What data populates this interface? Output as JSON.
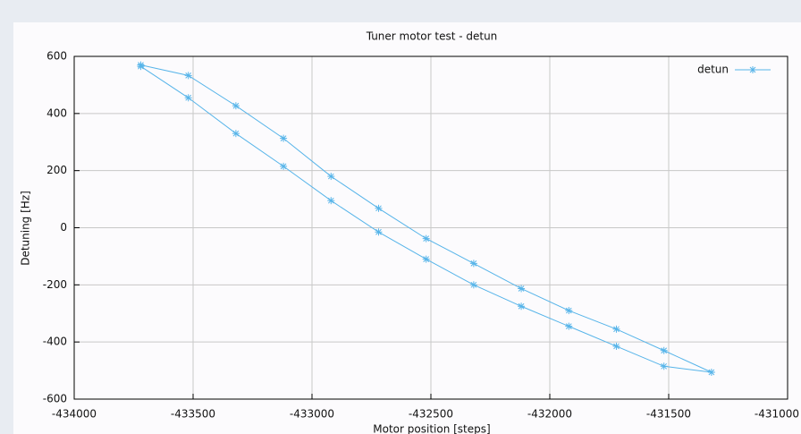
{
  "chart_data": {
    "type": "line",
    "title": "Tuner motor test - detun",
    "x_label": "Motor position [steps]",
    "y_label": "Detuning [Hz]",
    "x": [
      -433720,
      -433520,
      -433320,
      -433120,
      -432920,
      -432720,
      -432520,
      -432320,
      -432120,
      -431920,
      -431720,
      -431520,
      -431320,
      -431520,
      -431720,
      -431920,
      -432120,
      -432320,
      -432520,
      -432720,
      -432920,
      -433120,
      -433320,
      -433520,
      -433720
    ],
    "series": [
      {
        "name": "detun",
        "color": "#56b4e9",
        "values": [
          565,
          455,
          330,
          215,
          95,
          -15,
          -110,
          -200,
          -275,
          -345,
          -415,
          -485,
          -506,
          -430,
          -355,
          -290,
          -213,
          -125,
          -38,
          68,
          180,
          313,
          427,
          533,
          570
        ]
      }
    ],
    "xlim": [
      -434000,
      -431000
    ],
    "xticks": [
      -434000,
      -433500,
      -433000,
      -432500,
      -432000,
      -431500,
      -431000
    ],
    "ylim": [
      -600,
      600
    ],
    "yticks": [
      -600,
      -400,
      -200,
      0,
      200,
      400,
      600
    ],
    "grid": true,
    "legend": "top-right"
  }
}
